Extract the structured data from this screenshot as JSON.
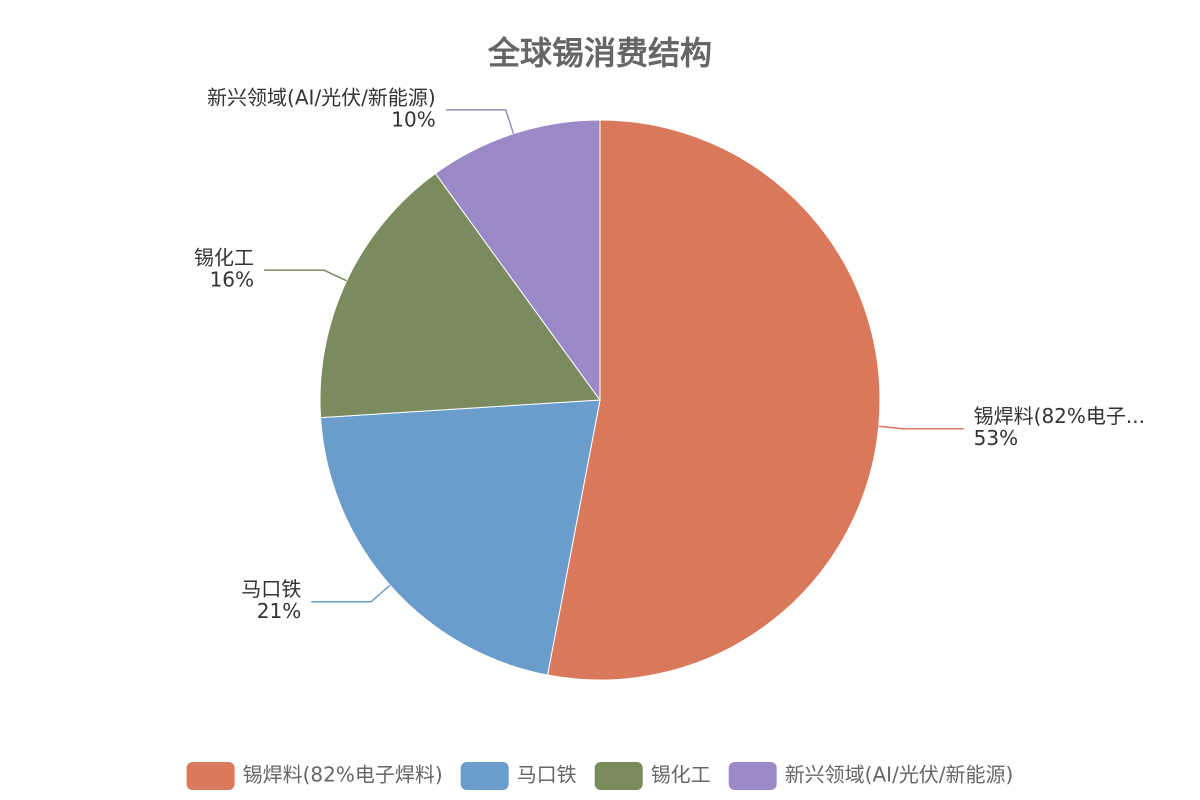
{
  "chart_data": {
    "type": "pie",
    "title": "全球锡消费结构",
    "categories": [
      "锡焊料(82%电子焊料)",
      "马口铁",
      "锡化工",
      "新兴领域(AI/光伏/新能源)"
    ],
    "slice_labels": [
      "锡焊料(82%电子...",
      "马口铁",
      "锡化工",
      "新兴领域(AI/光伏/新能源)"
    ],
    "values": [
      53,
      21,
      16,
      10
    ],
    "value_labels": [
      "53%",
      "21%",
      "16%",
      "10%"
    ],
    "colors": [
      "#d9785a",
      "#6a9ccc",
      "#7a8c5e",
      "#9a89c6"
    ],
    "legend": "bottom"
  }
}
